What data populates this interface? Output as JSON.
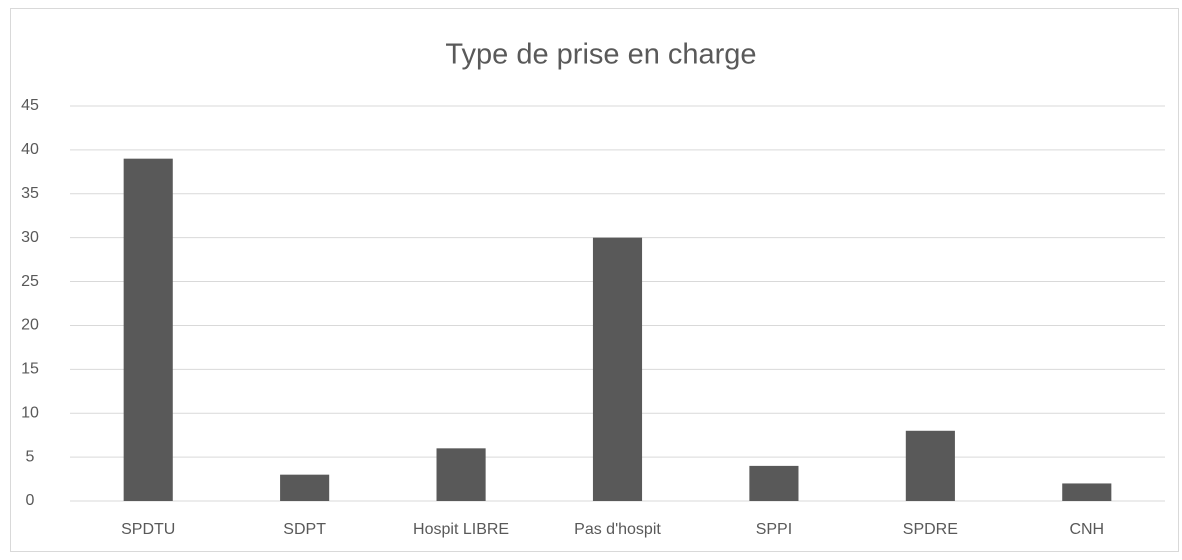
{
  "chart_data": {
    "type": "bar",
    "title": "Type de prise en charge",
    "categories": [
      "SPDTU",
      "SDPT",
      "Hospit LIBRE",
      "Pas d'hospit",
      "SPPI",
      "SPDRE",
      "CNH"
    ],
    "values": [
      39,
      3,
      6,
      30,
      4,
      8,
      2
    ],
    "color": "#595959",
    "ylim": [
      0,
      45
    ],
    "yticks": [
      0,
      5,
      10,
      15,
      20,
      25,
      30,
      35,
      40,
      45
    ],
    "grid": true
  }
}
